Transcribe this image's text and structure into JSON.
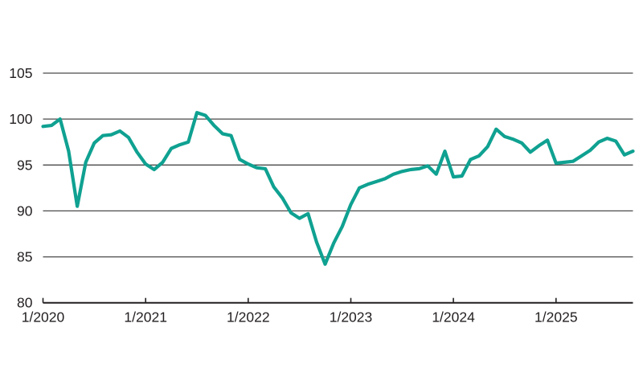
{
  "chart_data": {
    "type": "line",
    "title": "",
    "xlabel": "",
    "ylabel": "",
    "ylim": [
      80,
      105
    ],
    "y_ticks": [
      80,
      85,
      90,
      95,
      100,
      105
    ],
    "x_tick_labels": [
      "1/2020",
      "1/2021",
      "1/2022",
      "1/2023",
      "1/2024",
      "1/2025"
    ],
    "grid": "horizontal",
    "legend_position": "none",
    "line_color": "#0FA191",
    "axis_color": "#231F20",
    "gridline_color": "#4A4A4A",
    "label_color": "#231F20",
    "background_color": "#FFFFFF",
    "points": [
      {
        "date": "1/2020",
        "value": 99.2
      },
      {
        "date": "2/2020",
        "value": 99.3
      },
      {
        "date": "3/2020",
        "value": 100.0
      },
      {
        "date": "4/2020",
        "value": 96.5
      },
      {
        "date": "5/2020",
        "value": 90.5
      },
      {
        "date": "6/2020",
        "value": 95.3
      },
      {
        "date": "7/2020",
        "value": 97.4
      },
      {
        "date": "8/2020",
        "value": 98.2
      },
      {
        "date": "9/2020",
        "value": 98.3
      },
      {
        "date": "10/2020",
        "value": 98.7
      },
      {
        "date": "11/2020",
        "value": 98.0
      },
      {
        "date": "12/2020",
        "value": 96.4
      },
      {
        "date": "1/2021",
        "value": 95.1
      },
      {
        "date": "2/2021",
        "value": 94.5
      },
      {
        "date": "3/2021",
        "value": 95.3
      },
      {
        "date": "4/2021",
        "value": 96.8
      },
      {
        "date": "5/2021",
        "value": 97.2
      },
      {
        "date": "6/2021",
        "value": 97.5
      },
      {
        "date": "7/2021",
        "value": 100.7
      },
      {
        "date": "8/2021",
        "value": 100.4
      },
      {
        "date": "9/2021",
        "value": 99.3
      },
      {
        "date": "10/2021",
        "value": 98.4
      },
      {
        "date": "11/2021",
        "value": 98.2
      },
      {
        "date": "12/2021",
        "value": 95.6
      },
      {
        "date": "1/2022",
        "value": 95.1
      },
      {
        "date": "2/2022",
        "value": 94.7
      },
      {
        "date": "3/2022",
        "value": 94.6
      },
      {
        "date": "4/2022",
        "value": 92.6
      },
      {
        "date": "5/2022",
        "value": 91.4
      },
      {
        "date": "6/2022",
        "value": 89.8
      },
      {
        "date": "7/2022",
        "value": 89.2
      },
      {
        "date": "8/2022",
        "value": 89.7
      },
      {
        "date": "9/2022",
        "value": 86.6
      },
      {
        "date": "10/2022",
        "value": 84.2
      },
      {
        "date": "11/2022",
        "value": 86.5
      },
      {
        "date": "12/2022",
        "value": 88.3
      },
      {
        "date": "1/2023",
        "value": 90.7
      },
      {
        "date": "2/2023",
        "value": 92.5
      },
      {
        "date": "3/2023",
        "value": 92.9
      },
      {
        "date": "4/2023",
        "value": 93.2
      },
      {
        "date": "5/2023",
        "value": 93.5
      },
      {
        "date": "6/2023",
        "value": 94.0
      },
      {
        "date": "7/2023",
        "value": 94.3
      },
      {
        "date": "8/2023",
        "value": 94.5
      },
      {
        "date": "9/2023",
        "value": 94.6
      },
      {
        "date": "10/2023",
        "value": 94.9
      },
      {
        "date": "11/2023",
        "value": 94.0
      },
      {
        "date": "12/2023",
        "value": 96.5
      },
      {
        "date": "1/2024",
        "value": 93.7
      },
      {
        "date": "2/2024",
        "value": 93.8
      },
      {
        "date": "3/2024",
        "value": 95.6
      },
      {
        "date": "4/2024",
        "value": 96.0
      },
      {
        "date": "5/2024",
        "value": 97.0
      },
      {
        "date": "6/2024",
        "value": 98.9
      },
      {
        "date": "7/2024",
        "value": 98.1
      },
      {
        "date": "8/2024",
        "value": 97.8
      },
      {
        "date": "9/2024",
        "value": 97.4
      },
      {
        "date": "10/2024",
        "value": 96.4
      },
      {
        "date": "11/2024",
        "value": 97.1
      },
      {
        "date": "12/2024",
        "value": 97.7
      },
      {
        "date": "1/2025",
        "value": 95.2
      },
      {
        "date": "2/2025",
        "value": 95.3
      },
      {
        "date": "3/2025",
        "value": 95.4
      },
      {
        "date": "4/2025",
        "value": 96.0
      },
      {
        "date": "5/2025",
        "value": 96.6
      },
      {
        "date": "6/2025",
        "value": 97.5
      },
      {
        "date": "7/2025",
        "value": 97.9
      },
      {
        "date": "8/2025",
        "value": 97.6
      },
      {
        "date": "9/2025",
        "value": 96.1
      },
      {
        "date": "10/2025",
        "value": 96.5
      }
    ]
  }
}
